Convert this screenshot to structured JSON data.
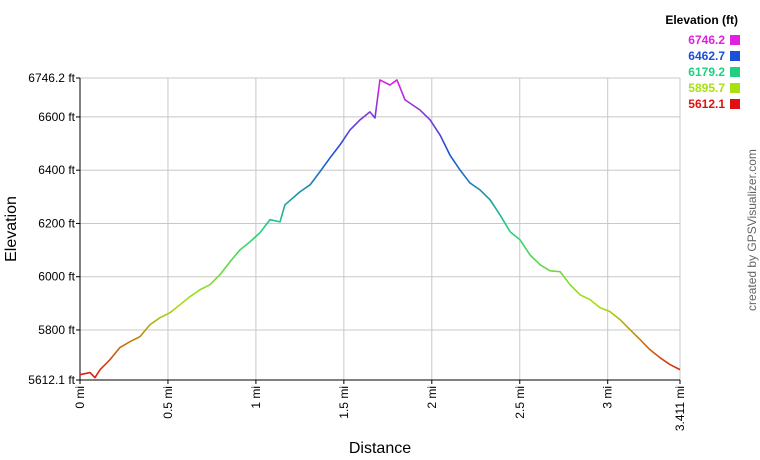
{
  "chart_data": {
    "type": "line",
    "xlabel": "Distance",
    "ylabel": "Elevation",
    "credit": "created by GPSVisualizer.com",
    "x": [
      0,
      0.057,
      0.085,
      0.114,
      0.171,
      0.227,
      0.284,
      0.341,
      0.398,
      0.455,
      0.512,
      0.569,
      0.625,
      0.682,
      0.739,
      0.796,
      0.853,
      0.91,
      0.966,
      1.023,
      1.08,
      1.137,
      1.165,
      1.251,
      1.308,
      1.364,
      1.421,
      1.478,
      1.535,
      1.592,
      1.648,
      1.677,
      1.705,
      1.762,
      1.802,
      1.848,
      1.933,
      1.99,
      2.047,
      2.103,
      2.16,
      2.217,
      2.274,
      2.331,
      2.388,
      2.445,
      2.501,
      2.558,
      2.615,
      2.672,
      2.729,
      2.786,
      2.843,
      2.899,
      2.956,
      3.013,
      3.07,
      3.127,
      3.184,
      3.24,
      3.297,
      3.354,
      3.411
    ],
    "series": [
      {
        "values": [
          5632,
          5640,
          5621,
          5651,
          5689,
          5734,
          5756,
          5775,
          5820,
          5846,
          5865,
          5895,
          5925,
          5951,
          5970,
          6008,
          6056,
          6101,
          6131,
          6165,
          6214,
          6206,
          6270,
          6319,
          6345,
          6394,
          6446,
          6495,
          6551,
          6589,
          6619,
          6596,
          6739,
          6720,
          6739,
          6664,
          6626,
          6589,
          6532,
          6457,
          6401,
          6352,
          6326,
          6289,
          6232,
          6169,
          6139,
          6082,
          6045,
          6022,
          6019,
          5970,
          5932,
          5914,
          5884,
          5869,
          5839,
          5801,
          5764,
          5726,
          5696,
          5670,
          5651
        ]
      }
    ],
    "xlim": [
      0,
      3.411
    ],
    "xticks": [
      {
        "value": 0,
        "label": "0 mi"
      },
      {
        "value": 0.5,
        "label": "0.5 mi"
      },
      {
        "value": 1,
        "label": "1 mi"
      },
      {
        "value": 1.5,
        "label": "1.5 mi"
      },
      {
        "value": 2,
        "label": "2 mi"
      },
      {
        "value": 2.5,
        "label": "2.5 mi"
      },
      {
        "value": 3,
        "label": "3 mi"
      },
      {
        "value": 3.411,
        "label": "3.411 mi"
      }
    ],
    "ylim": [
      5612.1,
      6746.2
    ],
    "yticks": [
      {
        "value": 5612.1,
        "label": "5612.1 ft"
      },
      {
        "value": 5800,
        "label": "5800 ft"
      },
      {
        "value": 6000,
        "label": "6000 ft"
      },
      {
        "value": 6200,
        "label": "6200 ft"
      },
      {
        "value": 6400,
        "label": "6400 ft"
      },
      {
        "value": 6600,
        "label": "6600 ft"
      },
      {
        "value": 6746.2,
        "label": "6746.2 ft"
      }
    ],
    "grid": true,
    "color_scale": {
      "title": "Elevation (ft)",
      "stops": [
        {
          "value": 6746.2,
          "color": "#e020e0"
        },
        {
          "value": 6462.7,
          "color": "#1a50d8"
        },
        {
          "value": 6179.2,
          "color": "#20d080"
        },
        {
          "value": 5895.7,
          "color": "#a8e010"
        },
        {
          "value": 5612.1,
          "color": "#e01010"
        }
      ]
    }
  }
}
